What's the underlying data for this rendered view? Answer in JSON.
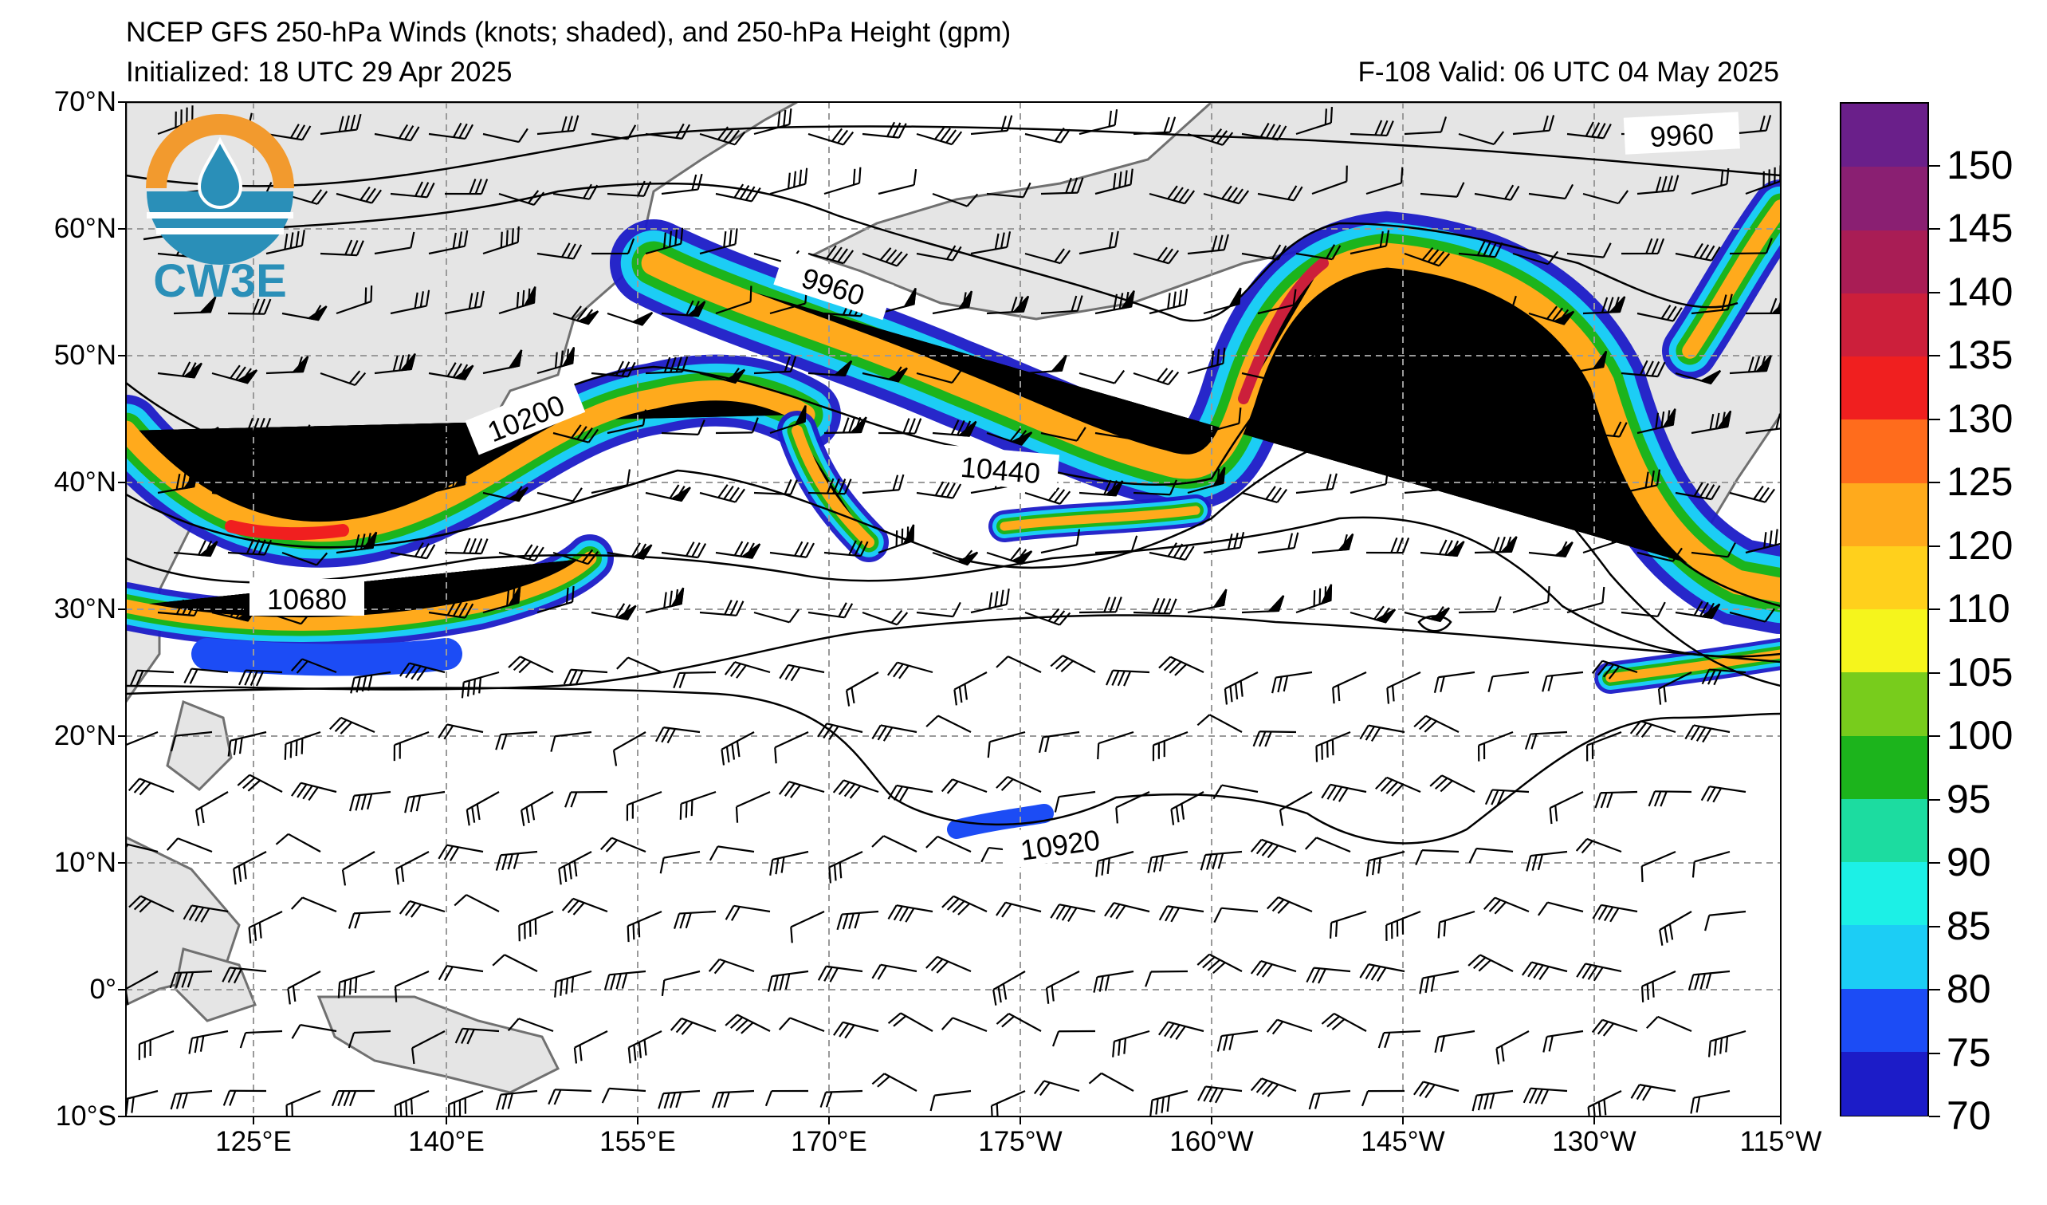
{
  "header": {
    "title": "NCEP GFS 250-hPa Winds (knots; shaded), and 250-hPa Height (gpm)",
    "initialized": "Initialized: 18 UTC 29 Apr 2025",
    "valid": "F-108  Valid: 06 UTC 04 May 2025"
  },
  "logo": {
    "text": "CW3E",
    "icon": "water-drop-sun-logo-icon"
  },
  "lat_labels": [
    "70°N",
    "60°N",
    "50°N",
    "40°N",
    "30°N",
    "20°N",
    "10°N",
    "0°",
    "10°S"
  ],
  "lon_labels": [
    "125°E",
    "140°E",
    "155°E",
    "170°E",
    "175°W",
    "160°W",
    "145°W",
    "130°W",
    "115°W"
  ],
  "contour_labels": [
    "9960",
    "9960",
    "10200",
    "10440",
    "10680",
    "10920"
  ],
  "colorbar": {
    "labels": [
      "150",
      "145",
      "140",
      "135",
      "130",
      "125",
      "120",
      "110",
      "105",
      "100",
      "95",
      "90",
      "85",
      "80",
      "75",
      "70"
    ],
    "colors": [
      "#6a1f8a",
      "#8a1f72",
      "#a91d55",
      "#cc1f3b",
      "#f01f1f",
      "#ff6c1c",
      "#ffaa1c",
      "#ffd01c",
      "#f5f51c",
      "#78cc1c",
      "#1cb41c",
      "#1cdca0",
      "#1cf0e6",
      "#1ccdf5",
      "#1c4cf5",
      "#1c1cc8"
    ]
  },
  "colors": {
    "land": "#e5e5e5",
    "coast": "#707070",
    "grid": "#9a9a9a",
    "logo_orange": "#f29a2e",
    "logo_blue": "#2a8fb8"
  }
}
